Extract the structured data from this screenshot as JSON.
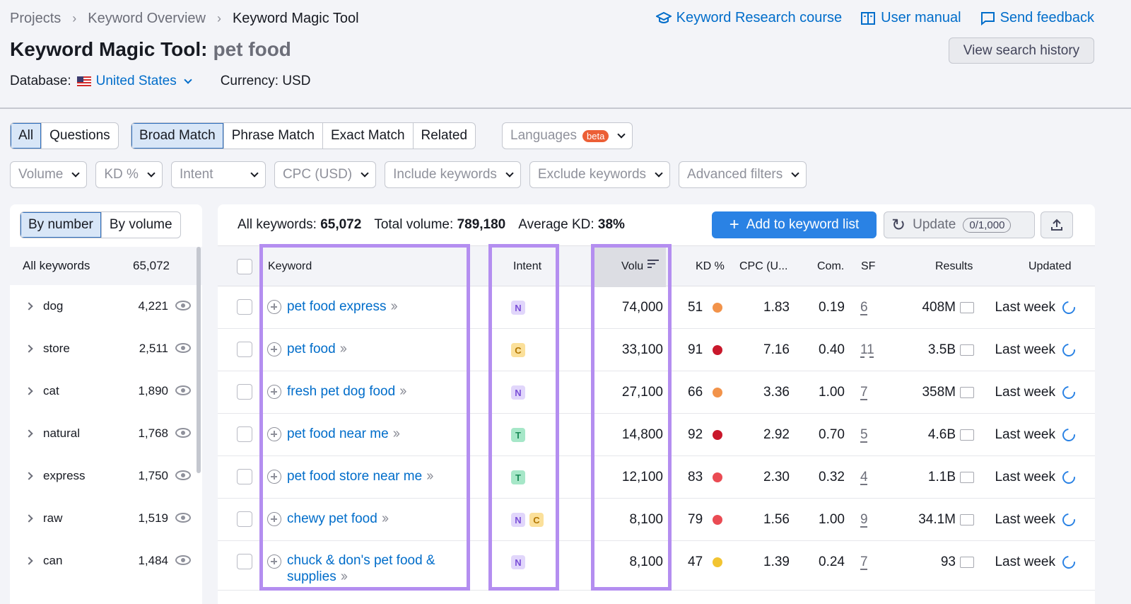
{
  "breadcrumbs": [
    "Projects",
    "Keyword Overview",
    "Keyword Magic Tool"
  ],
  "top_links": [
    {
      "label": "Keyword Research course",
      "icon": "graduation-cap-icon"
    },
    {
      "label": "User manual",
      "icon": "book-icon"
    },
    {
      "label": "Send feedback",
      "icon": "message-icon"
    }
  ],
  "title": {
    "tool": "Keyword Magic Tool:",
    "query": "pet food"
  },
  "history_button": "View search history",
  "database": {
    "label": "Database:",
    "value": "United States"
  },
  "currency": "Currency: USD",
  "tabs_a": [
    "All",
    "Questions"
  ],
  "tabs_b": [
    "Broad Match",
    "Phrase Match",
    "Exact Match",
    "Related"
  ],
  "languages": {
    "label": "Languages",
    "badge": "beta"
  },
  "filters": [
    "Volume",
    "KD %",
    "Intent",
    "CPC (USD)",
    "Include keywords",
    "Exclude keywords",
    "Advanced filters"
  ],
  "sidebar": {
    "toggle": [
      "By number",
      "By volume"
    ],
    "all_label": "All keywords",
    "all_count": "65,072",
    "groups": [
      {
        "name": "dog",
        "count": "4,221"
      },
      {
        "name": "store",
        "count": "2,511"
      },
      {
        "name": "cat",
        "count": "1,890"
      },
      {
        "name": "natural",
        "count": "1,768"
      },
      {
        "name": "express",
        "count": "1,750"
      },
      {
        "name": "raw",
        "count": "1,519"
      },
      {
        "name": "can",
        "count": "1,484"
      }
    ]
  },
  "summary": {
    "all_label": "All keywords:",
    "all_value": "65,072",
    "vol_label": "Total volume:",
    "vol_value": "789,180",
    "kd_label": "Average KD:",
    "kd_value": "38%"
  },
  "actions": {
    "add": "Add to keyword list",
    "update": "Update",
    "update_count": "0/1,000"
  },
  "columns": {
    "keyword": "Keyword",
    "intent": "Intent",
    "volume": "Volu",
    "kd": "KD %",
    "cpc": "CPC (U...",
    "com": "Com.",
    "sf": "SF",
    "results": "Results",
    "updated": "Updated"
  },
  "rows": [
    {
      "keyword": "pet food express",
      "intent": [
        "N"
      ],
      "volume": "74,000",
      "kd": "51",
      "kd_color": "#f2934a",
      "cpc": "1.83",
      "com": "0.19",
      "sf": "6",
      "results": "408M",
      "updated": "Last week"
    },
    {
      "keyword": "pet food",
      "intent": [
        "C"
      ],
      "volume": "33,100",
      "kd": "91",
      "kd_color": "#c9182b",
      "cpc": "7.16",
      "com": "0.40",
      "sf": "11",
      "results": "3.5B",
      "updated": "Last week"
    },
    {
      "keyword": "fresh pet dog food",
      "intent": [
        "N"
      ],
      "volume": "27,100",
      "kd": "66",
      "kd_color": "#f2934a",
      "cpc": "3.36",
      "com": "1.00",
      "sf": "7",
      "results": "358M",
      "updated": "Last week"
    },
    {
      "keyword": "pet food near me",
      "intent": [
        "T"
      ],
      "volume": "14,800",
      "kd": "92",
      "kd_color": "#c9182b",
      "cpc": "2.92",
      "com": "0.70",
      "sf": "5",
      "results": "4.6B",
      "updated": "Last week"
    },
    {
      "keyword": "pet food store near me",
      "intent": [
        "T"
      ],
      "volume": "12,100",
      "kd": "83",
      "kd_color": "#ea4b53",
      "cpc": "2.30",
      "com": "0.32",
      "sf": "4",
      "results": "1.1B",
      "updated": "Last week"
    },
    {
      "keyword": "chewy pet food",
      "intent": [
        "N",
        "C"
      ],
      "volume": "8,100",
      "kd": "79",
      "kd_color": "#ea4b53",
      "cpc": "1.56",
      "com": "1.00",
      "sf": "9",
      "results": "34.1M",
      "updated": "Last week"
    },
    {
      "keyword": "chuck & don's pet food & supplies",
      "intent": [
        "N"
      ],
      "volume": "8,100",
      "kd": "47",
      "kd_color": "#f2c431",
      "cpc": "1.39",
      "com": "0.24",
      "sf": "7",
      "results": "93",
      "updated": "Last week"
    }
  ]
}
